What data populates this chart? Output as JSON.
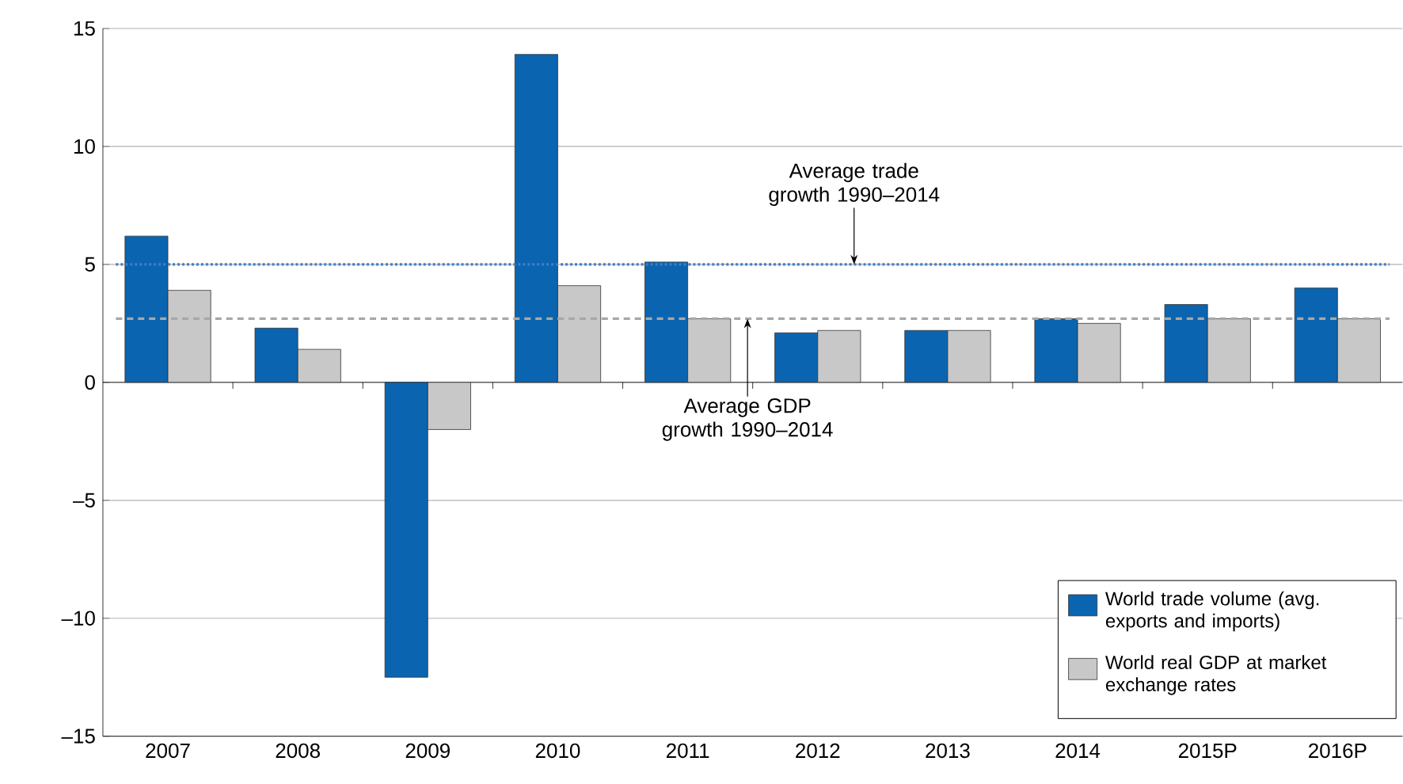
{
  "chart_data": {
    "type": "bar",
    "categories": [
      "2007",
      "2008",
      "2009",
      "2010",
      "2011",
      "2012",
      "2013",
      "2014",
      "2015P",
      "2016P"
    ],
    "series": [
      {
        "name": "World trade volume (avg. exports and imports)",
        "color": "#0b64b0",
        "values": [
          6.2,
          2.3,
          -12.5,
          13.9,
          5.1,
          2.1,
          2.2,
          2.7,
          3.3,
          4.0
        ]
      },
      {
        "name": "World real GDP at market exchange rates",
        "color": "#c8c8c8",
        "values": [
          3.9,
          1.4,
          -2.0,
          4.1,
          2.7,
          2.2,
          2.2,
          2.5,
          2.7,
          2.7
        ]
      }
    ],
    "ylim": [
      -15,
      15
    ],
    "yticks": [
      {
        "value": -15,
        "label": "–15"
      },
      {
        "value": -10,
        "label": "–10"
      },
      {
        "value": -5,
        "label": "–5"
      },
      0,
      5,
      10,
      15
    ],
    "ref_lines": [
      {
        "axis": "y",
        "value": 5.0,
        "label": "Average trade growth 1990–2014",
        "color": "#3f7fc6",
        "line_style": "dotted"
      },
      {
        "axis": "y",
        "value": 2.7,
        "label": "Average GDP growth 1990–2014",
        "color": "#a8a8a8",
        "line_style": "dashed"
      }
    ],
    "grid": "y",
    "legend": "bottom right"
  }
}
